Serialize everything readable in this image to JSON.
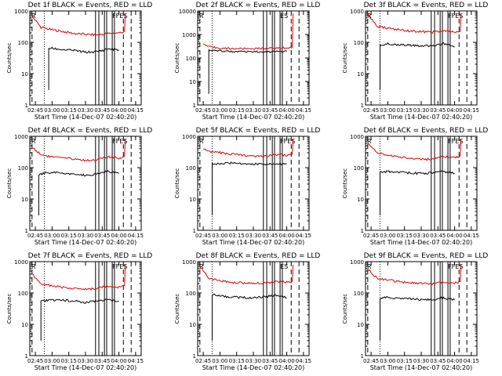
{
  "chart_data": [
    {
      "type": "line",
      "title": "Det 1f BLACK = Events, RED = LLD",
      "xlabel": "Start Time (14-Dec-07 02:40:20)",
      "ylabel": "Counts/sec",
      "yscale": "log",
      "ylim": [
        1,
        1000
      ],
      "xlim": [
        "02:40",
        "04:20"
      ],
      "x_ticks": [
        "02:45",
        "03:00",
        "03:15",
        "03:30",
        "03:45",
        "04:00",
        "04:15"
      ],
      "y_ticks": [
        "1",
        "10",
        "100",
        "1000"
      ],
      "flags": {
        "left": "R",
        "right": "FFES"
      },
      "series": [
        {
          "color": "#e00000",
          "x": [
            "02:42",
            "02:50",
            "03:00",
            "03:10",
            "03:20",
            "03:30",
            "03:40",
            "03:50",
            "04:00",
            "04:05"
          ],
          "y": [
            700,
            300,
            250,
            220,
            190,
            180,
            170,
            190,
            200,
            220
          ]
        },
        {
          "color": "#000000",
          "x": [
            "02:57",
            "03:00",
            "03:10",
            "03:20",
            "03:30",
            "03:40",
            "03:45",
            "03:50",
            "04:00"
          ],
          "y": [
            65,
            64,
            58,
            55,
            48,
            50,
            55,
            62,
            58
          ]
        }
      ]
    },
    {
      "type": "line",
      "title": "Det 2f BLACK = Events, RED = LLD",
      "xlabel": "Start Time (14-Dec-07 02:40:20)",
      "ylabel": "Counts/sec",
      "yscale": "log",
      "ylim": [
        1,
        10000
      ],
      "xlim": [
        "02:40",
        "04:20"
      ],
      "x_ticks": [
        "02:45",
        "03:00",
        "03:15",
        "03:30",
        "03:45",
        "04:00",
        "04:15"
      ],
      "y_ticks": [
        "1",
        "10",
        "100",
        "1000",
        "10000"
      ],
      "flags": {
        "left": "R",
        "right": "ES"
      },
      "series": [
        {
          "color": "#e00000",
          "x": [
            "02:45",
            "02:50",
            "03:00",
            "03:10",
            "03:20",
            "03:30",
            "03:40",
            "03:50",
            "04:00",
            "04:05"
          ],
          "y": [
            400,
            300,
            260,
            250,
            250,
            250,
            255,
            260,
            270,
            280
          ]
        },
        {
          "color": "#000000",
          "x": [
            "02:50",
            "03:00",
            "03:10",
            "03:20",
            "03:30",
            "03:40",
            "03:50",
            "04:00"
          ],
          "y": [
            210,
            200,
            190,
            185,
            180,
            180,
            185,
            190
          ]
        }
      ]
    },
    {
      "type": "line",
      "title": "Det 3f BLACK = Events, RED = LLD",
      "xlabel": "Start Time (14-Dec-07 02:40:20)",
      "ylabel": "Counts/sec",
      "yscale": "log",
      "ylim": [
        1,
        1000
      ],
      "xlim": [
        "02:40",
        "04:20"
      ],
      "x_ticks": [
        "02:45",
        "03:00",
        "03:15",
        "03:30",
        "03:45",
        "04:00",
        "04:15"
      ],
      "y_ticks": [
        "1",
        "10",
        "100",
        "1000"
      ],
      "flags": {
        "left": "R",
        "right": "FFES"
      },
      "series": [
        {
          "color": "#e00000",
          "x": [
            "02:42",
            "02:50",
            "03:00",
            "03:10",
            "03:20",
            "03:30",
            "03:40",
            "03:50",
            "04:00",
            "04:05"
          ],
          "y": [
            800,
            320,
            280,
            250,
            230,
            220,
            210,
            230,
            210,
            220
          ]
        },
        {
          "color": "#000000",
          "x": [
            "02:53",
            "03:00",
            "03:10",
            "03:20",
            "03:30",
            "03:40",
            "03:50",
            "04:00"
          ],
          "y": [
            80,
            90,
            85,
            80,
            75,
            80,
            90,
            70
          ]
        }
      ]
    },
    {
      "type": "line",
      "title": "Det 4f BLACK = Events, RED = LLD",
      "xlabel": "Start Time (14-Dec-07 02:40:20)",
      "ylabel": "Counts/sec",
      "yscale": "log",
      "ylim": [
        1,
        1000
      ],
      "xlim": [
        "02:40",
        "04:20"
      ],
      "x_ticks": [
        "02:45",
        "03:00",
        "03:15",
        "03:30",
        "03:45",
        "04:00",
        "04:15"
      ],
      "y_ticks": [
        "1",
        "10",
        "100",
        "1000"
      ],
      "flags": {
        "left": "R",
        "right": "FFES"
      },
      "series": [
        {
          "color": "#e00000",
          "x": [
            "02:42",
            "02:50",
            "03:00",
            "03:10",
            "03:20",
            "03:30",
            "03:40",
            "03:50",
            "04:00",
            "04:05"
          ],
          "y": [
            450,
            260,
            220,
            200,
            190,
            170,
            180,
            220,
            200,
            230
          ]
        },
        {
          "color": "#000000",
          "x": [
            "02:48",
            "02:55",
            "03:00",
            "03:10",
            "03:20",
            "03:30",
            "03:40",
            "03:50",
            "04:00"
          ],
          "y": [
            60,
            70,
            70,
            65,
            60,
            58,
            62,
            75,
            65
          ]
        }
      ]
    },
    {
      "type": "line",
      "title": "Det 5f BLACK = Events, RED = LLD",
      "xlabel": "Start Time (14-Dec-07 02:40:20)",
      "ylabel": "Counts/sec",
      "yscale": "log",
      "ylim": [
        1,
        1000
      ],
      "xlim": [
        "02:40",
        "04:20"
      ],
      "x_ticks": [
        "02:45",
        "03:00",
        "03:15",
        "03:30",
        "03:45",
        "04:00",
        "04:15"
      ],
      "y_ticks": [
        "1",
        "10",
        "100",
        "1000"
      ],
      "flags": {
        "left": "R",
        "right": "FFES"
      },
      "series": [
        {
          "color": "#e00000",
          "x": [
            "02:45",
            "02:50",
            "03:00",
            "03:10",
            "03:20",
            "03:30",
            "03:40",
            "03:50",
            "04:00",
            "04:05"
          ],
          "y": [
            400,
            320,
            300,
            270,
            250,
            240,
            230,
            260,
            250,
            270
          ]
        },
        {
          "color": "#000000",
          "x": [
            "02:53",
            "03:00",
            "03:10",
            "03:20",
            "03:30",
            "03:40",
            "03:50",
            "04:00"
          ],
          "y": [
            130,
            135,
            140,
            135,
            130,
            125,
            135,
            130
          ]
        }
      ]
    },
    {
      "type": "line",
      "title": "Det 6f BLACK = Events, RED = LLD",
      "xlabel": "Start Time (14-Dec-07 02:40:20)",
      "ylabel": "Counts/sec",
      "yscale": "log",
      "ylim": [
        1,
        1000
      ],
      "xlim": [
        "02:40",
        "04:20"
      ],
      "x_ticks": [
        "02:45",
        "03:00",
        "03:15",
        "03:30",
        "03:45",
        "04:00",
        "04:15"
      ],
      "y_ticks": [
        "1",
        "10",
        "100",
        "1000"
      ],
      "flags": {
        "left": "R",
        "right": "FFES"
      },
      "series": [
        {
          "color": "#e00000",
          "x": [
            "02:42",
            "02:50",
            "03:00",
            "03:10",
            "03:20",
            "03:30",
            "03:40",
            "03:50",
            "04:00",
            "04:05"
          ],
          "y": [
            600,
            300,
            250,
            220,
            200,
            190,
            180,
            220,
            210,
            230
          ]
        },
        {
          "color": "#000000",
          "x": [
            "02:53",
            "03:00",
            "03:10",
            "03:20",
            "03:30",
            "03:40",
            "03:50",
            "04:00"
          ],
          "y": [
            70,
            75,
            72,
            68,
            65,
            68,
            75,
            65
          ]
        }
      ]
    },
    {
      "type": "line",
      "title": "Det 7f BLACK = Events, RED = LLD",
      "xlabel": "Start Time (14-Dec-07 02:40:20)",
      "ylabel": "Counts/sec",
      "yscale": "log",
      "ylim": [
        1,
        1000
      ],
      "xlim": [
        "02:40",
        "04:20"
      ],
      "x_ticks": [
        "02:45",
        "03:00",
        "03:15",
        "03:30",
        "03:45",
        "04:00",
        "04:15"
      ],
      "y_ticks": [
        "1",
        "10",
        "100",
        "1000"
      ],
      "flags": {
        "left": "R",
        "right": "FFES"
      },
      "series": [
        {
          "color": "#e00000",
          "x": [
            "02:42",
            "02:50",
            "03:00",
            "03:10",
            "03:20",
            "03:30",
            "03:40",
            "03:50",
            "04:00",
            "04:05"
          ],
          "y": [
            400,
            200,
            170,
            150,
            140,
            130,
            140,
            170,
            150,
            170
          ]
        },
        {
          "color": "#000000",
          "x": [
            "02:50",
            "03:00",
            "03:10",
            "03:20",
            "03:30",
            "03:40",
            "03:50",
            "04:00"
          ],
          "y": [
            55,
            60,
            58,
            55,
            50,
            55,
            62,
            55
          ]
        }
      ]
    },
    {
      "type": "line",
      "title": "Det 8f BLACK = Events, RED = LLD",
      "xlabel": "Start Time (14-Dec-07 02:40:20)",
      "ylabel": "Counts/sec",
      "yscale": "log",
      "ylim": [
        1,
        1000
      ],
      "xlim": [
        "02:40",
        "04:20"
      ],
      "x_ticks": [
        "02:45",
        "03:00",
        "03:15",
        "03:30",
        "03:45",
        "04:00",
        "04:15"
      ],
      "y_ticks": [
        "1",
        "10",
        "100",
        "1000"
      ],
      "flags": {
        "left": "R",
        "right": "ES"
      },
      "series": [
        {
          "color": "#e00000",
          "x": [
            "02:42",
            "02:50",
            "03:00",
            "03:10",
            "03:20",
            "03:30",
            "03:40",
            "03:50",
            "04:00",
            "04:05"
          ],
          "y": [
            700,
            300,
            250,
            220,
            210,
            200,
            210,
            230,
            220,
            240
          ]
        },
        {
          "color": "#000000",
          "x": [
            "02:53",
            "03:00",
            "03:10",
            "03:20",
            "03:30",
            "03:40",
            "03:50",
            "04:00"
          ],
          "y": [
            90,
            80,
            75,
            72,
            70,
            75,
            85,
            70
          ]
        }
      ]
    },
    {
      "type": "line",
      "title": "Det 9f BLACK = Events, RED = LLD",
      "xlabel": "Start Time (14-Dec-07 02:40:20)",
      "ylabel": "Counts/sec",
      "yscale": "log",
      "ylim": [
        1,
        1000
      ],
      "xlim": [
        "02:40",
        "04:20"
      ],
      "x_ticks": [
        "02:45",
        "03:00",
        "03:15",
        "03:30",
        "03:45",
        "04:00",
        "04:15"
      ],
      "y_ticks": [
        "1",
        "10",
        "100",
        "1000"
      ],
      "flags": {
        "left": "R",
        "right": "FFES"
      },
      "series": [
        {
          "color": "#e00000",
          "x": [
            "02:42",
            "02:50",
            "03:00",
            "03:10",
            "03:20",
            "03:30",
            "03:40",
            "03:50",
            "04:00",
            "04:05"
          ],
          "y": [
            600,
            300,
            260,
            230,
            210,
            200,
            200,
            230,
            210,
            230
          ]
        },
        {
          "color": "#000000",
          "x": [
            "02:53",
            "03:00",
            "03:10",
            "03:20",
            "03:30",
            "03:40",
            "03:50",
            "04:00"
          ],
          "y": [
            70,
            72,
            68,
            65,
            60,
            62,
            70,
            60
          ]
        }
      ]
    }
  ]
}
